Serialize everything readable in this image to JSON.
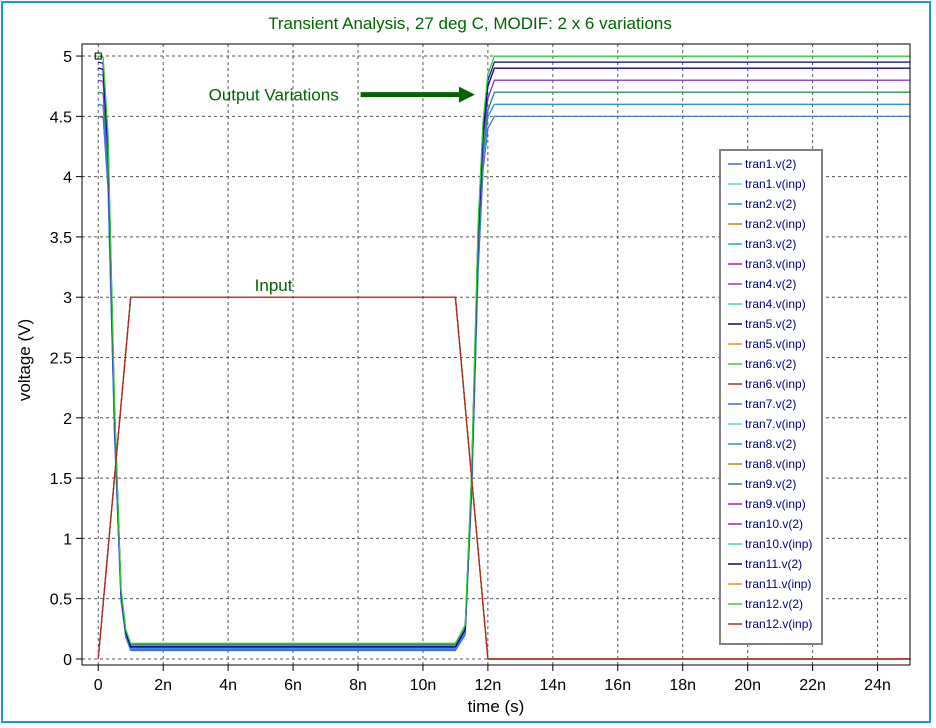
{
  "colors": {
    "frame": "#1e90ff",
    "title": "#006400",
    "annotation": "#006400",
    "arrow": "#006400",
    "legend_text": "#000080",
    "grid": "#000000"
  },
  "chart_data": {
    "type": "line",
    "title": "Transient Analysis, 27 deg C, MODIF: 2 x 6 variations",
    "xlabel": "time (s)",
    "ylabel": "voltage (V)",
    "xlim": [
      -0.5,
      25
    ],
    "ylim": [
      -0.05,
      5.1
    ],
    "grid": true,
    "grid_style": "dashed",
    "legend_position": "right",
    "x_ticks": [
      {
        "v": 0,
        "label": "0"
      },
      {
        "v": 2,
        "label": "2n"
      },
      {
        "v": 4,
        "label": "4n"
      },
      {
        "v": 6,
        "label": "6n"
      },
      {
        "v": 8,
        "label": "8n"
      },
      {
        "v": 10,
        "label": "10n"
      },
      {
        "v": 12,
        "label": "12n"
      },
      {
        "v": 14,
        "label": "14n"
      },
      {
        "v": 16,
        "label": "16n"
      },
      {
        "v": 18,
        "label": "18n"
      },
      {
        "v": 20,
        "label": "20n"
      },
      {
        "v": 22,
        "label": "22n"
      },
      {
        "v": 24,
        "label": "24n"
      }
    ],
    "y_ticks": [
      {
        "v": 0,
        "label": "0"
      },
      {
        "v": 0.5,
        "label": "0.5"
      },
      {
        "v": 1,
        "label": "1"
      },
      {
        "v": 1.5,
        "label": "1.5"
      },
      {
        "v": 2,
        "label": "2"
      },
      {
        "v": 2.5,
        "label": "2.5"
      },
      {
        "v": 3,
        "label": "3"
      },
      {
        "v": 3.5,
        "label": "3.5"
      },
      {
        "v": 4,
        "label": "4"
      },
      {
        "v": 4.5,
        "label": "4.5"
      },
      {
        "v": 5,
        "label": "5"
      }
    ],
    "annotations": [
      {
        "text": "Output Variations",
        "x": 3.4,
        "y": 4.68,
        "arrow_to": [
          11.6,
          4.68
        ]
      },
      {
        "text": "Input",
        "x": 5.4,
        "y": 3.1
      }
    ],
    "series": [
      {
        "name": "tran1.v(2)",
        "color": "#4169e1",
        "x": [
          0,
          0.15,
          0.3,
          0.5,
          0.7,
          0.85,
          1,
          11,
          11.3,
          11.5,
          11.7,
          11.85,
          12,
          12.2,
          25
        ],
        "y": [
          4.85,
          4.84,
          4.2,
          2.0,
          0.55,
          0.2,
          0.1,
          0.1,
          0.25,
          1.5,
          3.5,
          4.3,
          4.65,
          4.8,
          4.8
        ]
      },
      {
        "name": "tran1.v(inp)",
        "color": "#40e0d0",
        "x": [
          0,
          1,
          11,
          12,
          25
        ],
        "y": [
          0,
          3,
          3,
          0,
          0
        ]
      },
      {
        "name": "tran2.v(2)",
        "color": "#1e90ff",
        "x": [
          0,
          0.15,
          0.3,
          0.5,
          0.7,
          0.85,
          1,
          11,
          11.3,
          11.5,
          11.7,
          11.85,
          12,
          12.2,
          25
        ],
        "y": [
          4.6,
          4.59,
          4.0,
          1.9,
          0.5,
          0.2,
          0.09,
          0.09,
          0.22,
          1.4,
          3.3,
          4.15,
          4.5,
          4.6,
          4.6
        ]
      },
      {
        "name": "tran2.v(inp)",
        "color": "#b8860b",
        "x": [
          0,
          1,
          11,
          12,
          25
        ],
        "y": [
          0,
          3,
          3,
          0,
          0
        ]
      },
      {
        "name": "tran3.v(2)",
        "color": "#20b2aa",
        "x": [
          0,
          0.15,
          0.3,
          0.5,
          0.7,
          0.85,
          1,
          11,
          11.3,
          11.5,
          11.7,
          11.85,
          12,
          12.2,
          25
        ],
        "y": [
          4.7,
          4.69,
          4.1,
          1.95,
          0.52,
          0.2,
          0.11,
          0.11,
          0.25,
          1.5,
          3.4,
          4.2,
          4.55,
          4.7,
          4.7
        ]
      },
      {
        "name": "tran3.v(inp)",
        "color": "#c71585",
        "x": [
          0,
          1,
          11,
          12,
          25
        ],
        "y": [
          0,
          3,
          3,
          0,
          0
        ]
      },
      {
        "name": "tran4.v(2)",
        "color": "#9932cc",
        "x": [
          0,
          0.15,
          0.3,
          0.5,
          0.7,
          0.85,
          1,
          11,
          11.3,
          11.5,
          11.7,
          11.85,
          12,
          12.2,
          25
        ],
        "y": [
          4.9,
          4.89,
          4.25,
          2.05,
          0.56,
          0.22,
          0.08,
          0.08,
          0.22,
          1.45,
          3.5,
          4.35,
          4.75,
          4.9,
          4.9
        ]
      },
      {
        "name": "tran4.v(inp)",
        "color": "#48d1cc",
        "x": [
          0,
          1,
          11,
          12,
          25
        ],
        "y": [
          0,
          3,
          3,
          0,
          0
        ]
      },
      {
        "name": "tran5.v(2)",
        "color": "#00008b",
        "x": [
          0,
          0.15,
          0.3,
          0.5,
          0.7,
          0.85,
          1,
          11,
          11.3,
          11.5,
          11.7,
          11.85,
          12,
          12.2,
          25
        ],
        "y": [
          4.95,
          4.94,
          4.3,
          2.1,
          0.57,
          0.22,
          0.1,
          0.1,
          0.25,
          1.5,
          3.55,
          4.4,
          4.8,
          4.95,
          4.95
        ]
      },
      {
        "name": "tran5.v(inp)",
        "color": "#ff8c00",
        "x": [
          0,
          1,
          11,
          12,
          25
        ],
        "y": [
          0,
          3,
          3,
          0,
          0
        ]
      },
      {
        "name": "tran6.v(2)",
        "color": "#32cd32",
        "x": [
          0,
          0.15,
          0.3,
          0.5,
          0.7,
          0.85,
          1,
          11,
          11.3,
          11.5,
          11.7,
          11.85,
          12,
          12.2,
          25
        ],
        "y": [
          5.0,
          4.99,
          4.35,
          2.1,
          0.58,
          0.24,
          0.13,
          0.13,
          0.28,
          1.55,
          3.6,
          4.45,
          4.85,
          5.0,
          5.0
        ]
      },
      {
        "name": "tran6.v(inp)",
        "color": "#b22222",
        "x": [
          0,
          1,
          11,
          12,
          25
        ],
        "y": [
          0,
          3,
          3,
          0,
          0
        ]
      },
      {
        "name": "tran7.v(2)",
        "color": "#4169e1",
        "x": [
          0,
          0.15,
          0.3,
          0.5,
          0.7,
          0.85,
          1,
          11,
          11.3,
          11.5,
          11.7,
          11.85,
          12,
          12.2,
          25
        ],
        "y": [
          4.5,
          4.49,
          3.9,
          1.85,
          0.48,
          0.18,
          0.07,
          0.07,
          0.2,
          1.35,
          3.2,
          4.05,
          4.4,
          4.5,
          4.5
        ]
      },
      {
        "name": "tran7.v(inp)",
        "color": "#40e0d0",
        "x": [
          0,
          1,
          11,
          12,
          25
        ],
        "y": [
          0,
          3,
          3,
          0,
          0
        ]
      },
      {
        "name": "tran8.v(2)",
        "color": "#1e90ff",
        "x": [
          0,
          0.15,
          0.3,
          0.5,
          0.7,
          0.85,
          1,
          11,
          11.3,
          11.5,
          11.7,
          11.85,
          12,
          12.2,
          25
        ],
        "y": [
          4.6,
          4.59,
          4.0,
          1.9,
          0.5,
          0.19,
          0.09,
          0.09,
          0.22,
          1.4,
          3.3,
          4.15,
          4.5,
          4.6,
          4.6
        ]
      },
      {
        "name": "tran8.v(inp)",
        "color": "#b8860b",
        "x": [
          0,
          1,
          11,
          12,
          25
        ],
        "y": [
          0,
          3,
          3,
          0,
          0
        ]
      },
      {
        "name": "tran9.v(2)",
        "color": "#2e8b57",
        "x": [
          0,
          0.15,
          0.3,
          0.5,
          0.7,
          0.85,
          1,
          11,
          11.3,
          11.5,
          11.7,
          11.85,
          12,
          12.2,
          25
        ],
        "y": [
          4.7,
          4.69,
          4.1,
          1.95,
          0.52,
          0.21,
          0.12,
          0.12,
          0.26,
          1.5,
          3.4,
          4.2,
          4.55,
          4.7,
          4.7
        ]
      },
      {
        "name": "tran9.v(inp)",
        "color": "#c71585",
        "x": [
          0,
          1,
          11,
          12,
          25
        ],
        "y": [
          0,
          3,
          3,
          0,
          0
        ]
      },
      {
        "name": "tran10.v(2)",
        "color": "#8a2be2",
        "x": [
          0,
          0.15,
          0.3,
          0.5,
          0.7,
          0.85,
          1,
          11,
          11.3,
          11.5,
          11.7,
          11.85,
          12,
          12.2,
          25
        ],
        "y": [
          4.8,
          4.79,
          4.15,
          2.0,
          0.54,
          0.21,
          0.1,
          0.1,
          0.24,
          1.45,
          3.45,
          4.3,
          4.65,
          4.8,
          4.8
        ]
      },
      {
        "name": "tran10.v(inp)",
        "color": "#48d1cc",
        "x": [
          0,
          1,
          11,
          12,
          25
        ],
        "y": [
          0,
          3,
          3,
          0,
          0
        ]
      },
      {
        "name": "tran11.v(2)",
        "color": "#00008b",
        "x": [
          0,
          0.15,
          0.3,
          0.5,
          0.7,
          0.85,
          1,
          11,
          11.3,
          11.5,
          11.7,
          11.85,
          12,
          12.2,
          25
        ],
        "y": [
          4.9,
          4.89,
          4.25,
          2.05,
          0.56,
          0.22,
          0.1,
          0.1,
          0.24,
          1.5,
          3.5,
          4.35,
          4.75,
          4.9,
          4.9
        ]
      },
      {
        "name": "tran11.v(inp)",
        "color": "#ff8c00",
        "x": [
          0,
          1,
          11,
          12,
          25
        ],
        "y": [
          0,
          3,
          3,
          0,
          0
        ]
      },
      {
        "name": "tran12.v(2)",
        "color": "#32cd32",
        "x": [
          0,
          0.15,
          0.3,
          0.5,
          0.7,
          0.85,
          1,
          11,
          11.3,
          11.5,
          11.7,
          11.85,
          12,
          12.2,
          25
        ],
        "y": [
          5.0,
          4.99,
          4.35,
          2.1,
          0.58,
          0.24,
          0.13,
          0.13,
          0.28,
          1.55,
          3.6,
          4.45,
          4.85,
          5.0,
          5.0
        ]
      },
      {
        "name": "tran12.v(inp)",
        "color": "#b22222",
        "x": [
          0,
          1,
          11,
          12,
          25
        ],
        "y": [
          0,
          3,
          3,
          0,
          0
        ]
      }
    ]
  }
}
